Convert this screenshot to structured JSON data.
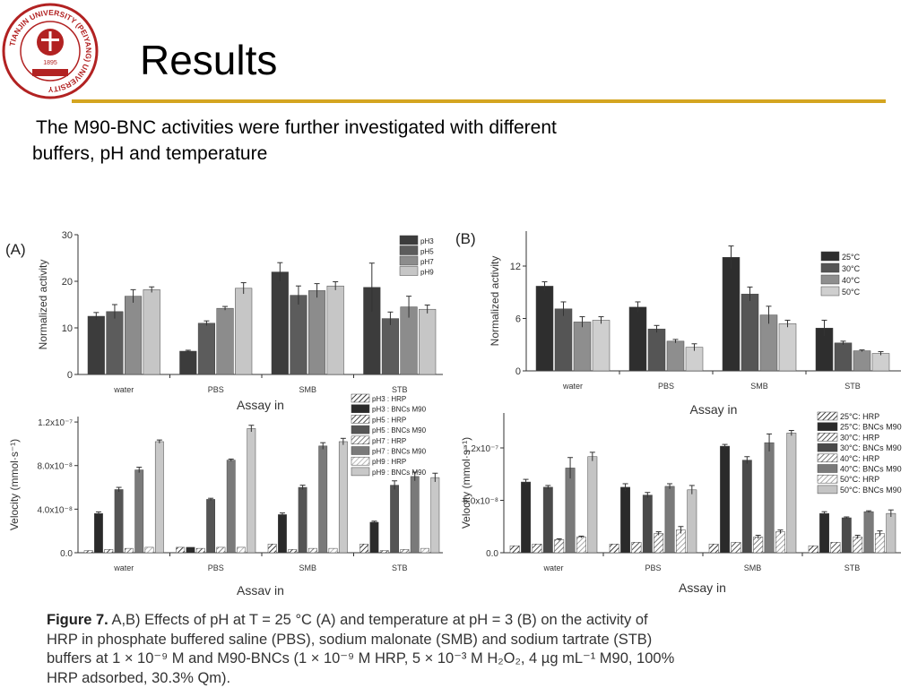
{
  "slide": {
    "title": "Results",
    "intro_line1": "The M90-BNC activities were further investigated with different",
    "intro_line2": "buffers, pH and temperature",
    "logo_ring_text": "TIANJIN UNIVERSITY (PEIYANG) UNIVERSITY",
    "logo_year": "1895",
    "accent_color": "#d4a520",
    "logo_color": "#b22222"
  },
  "caption": {
    "label": "Figure 7.",
    "line1": "A,B) Effects of pH at T = 25 °C (A) and temperature at pH = 3 (B) on the activity of",
    "line2": "HRP in phosphate buffered saline (PBS), sodium malonate (SMB) and sodium tartrate (STB)",
    "line3": "buffers at 1 × 10⁻⁹ M and M90-BNCs (1 × 10⁻⁹ M HRP, 5 × 10⁻³ M H₂O₂, 4 µg mL⁻¹ M90, 100%",
    "line4": "HRP adsorbed, 30.3% Qm)."
  },
  "chart_data": [
    {
      "panel": "(A)",
      "type": "bar",
      "categories": [
        "water",
        "PBS",
        "SMB",
        "STB"
      ],
      "xlabel": "Assay in",
      "ylabel": "Normalized activity",
      "ylim": [
        0,
        30
      ],
      "yticks": [
        "0",
        "10",
        "20",
        "30"
      ],
      "ytick_values": [
        0,
        10,
        20,
        30
      ],
      "legend_position": "top-right",
      "series": [
        {
          "name": "pH3",
          "color": "#3c3c3c",
          "hatch": false,
          "values": [
            12.5,
            5,
            22,
            18.7
          ],
          "errors": [
            0.8,
            0.2,
            2,
            5.2
          ]
        },
        {
          "name": "pH5",
          "color": "#5c5c5c",
          "hatch": false,
          "values": [
            13.5,
            11,
            17,
            12
          ],
          "errors": [
            1.5,
            0.5,
            2,
            1.4
          ]
        },
        {
          "name": "pH7",
          "color": "#8c8c8c",
          "hatch": false,
          "values": [
            16.8,
            14.2,
            18,
            14.5
          ],
          "errors": [
            1.4,
            0.4,
            1.5,
            2.3
          ]
        },
        {
          "name": "pH9",
          "color": "#c6c6c6",
          "hatch": false,
          "values": [
            18.2,
            18.5,
            19,
            14
          ],
          "errors": [
            0.6,
            1.2,
            0.9,
            0.9
          ]
        }
      ]
    },
    {
      "panel": "(B)",
      "type": "bar",
      "categories": [
        "water",
        "PBS",
        "SMB",
        "STB"
      ],
      "xlabel": "Assay in",
      "ylabel": "Normalized activity",
      "ylim": [
        0,
        16
      ],
      "yticks": [
        "0",
        "6",
        "12"
      ],
      "ytick_values": [
        0,
        6,
        12
      ],
      "legend_position": "top-right",
      "series": [
        {
          "name": "25°C",
          "color": "#2e2e2e",
          "hatch": false,
          "values": [
            9.7,
            7.3,
            13,
            4.9
          ],
          "errors": [
            0.5,
            0.6,
            1.3,
            0.9
          ]
        },
        {
          "name": "30°C",
          "color": "#555555",
          "hatch": false,
          "values": [
            7.1,
            4.8,
            8.8,
            3.2
          ],
          "errors": [
            0.8,
            0.4,
            0.8,
            0.2
          ]
        },
        {
          "name": "40°C",
          "color": "#8e8e8e",
          "hatch": false,
          "values": [
            5.6,
            3.4,
            6.4,
            2.3
          ],
          "errors": [
            0.6,
            0.2,
            1.0,
            0.1
          ]
        },
        {
          "name": "50°C",
          "color": "#cfcfcf",
          "hatch": false,
          "values": [
            5.8,
            2.7,
            5.4,
            2.0
          ],
          "errors": [
            0.4,
            0.4,
            0.4,
            0.2
          ]
        }
      ]
    },
    {
      "type": "bar",
      "categories": [
        "water",
        "PBS",
        "SMB",
        "STB"
      ],
      "xlabel": "Assav in",
      "ylabel": "Velocity (mmol·s⁻¹)",
      "ylim": [
        0,
        1.25e-07
      ],
      "yticks": [
        "0.0",
        "4.0x10⁻⁸",
        "8.0x10⁻⁸",
        "1.2x10⁻⁷"
      ],
      "ytick_values": [
        0,
        4e-08,
        8e-08,
        1.2e-07
      ],
      "legend_position": "top-right",
      "series": [
        {
          "name": "pH3 : HRP",
          "color": "#3a3a3a",
          "hatch": true,
          "values": [
            2e-09,
            5e-09,
            8e-09,
            8e-09
          ],
          "errors": [
            0,
            0,
            0,
            0
          ]
        },
        {
          "name": "pH3 : BNCs M90",
          "color": "#2a2a2a",
          "hatch": false,
          "values": [
            3.6e-08,
            5e-09,
            3.5e-08,
            2.8e-08
          ],
          "errors": [
            1.5e-09,
            0,
            1.5e-09,
            1e-09
          ]
        },
        {
          "name": "pH5 : HRP",
          "color": "#4a4a4a",
          "hatch": true,
          "values": [
            3e-09,
            4e-09,
            3e-09,
            2e-09
          ],
          "errors": [
            0,
            0,
            0,
            0
          ]
        },
        {
          "name": "pH5 : BNCs M90",
          "color": "#555555",
          "hatch": false,
          "values": [
            5.8e-08,
            4.9e-08,
            6e-08,
            6.2e-08
          ],
          "errors": [
            2e-09,
            1e-09,
            2e-09,
            4e-09
          ]
        },
        {
          "name": "pH7 : HRP",
          "color": "#808080",
          "hatch": true,
          "values": [
            4e-09,
            5e-09,
            4e-09,
            3e-09
          ],
          "errors": [
            0,
            0,
            0,
            0
          ]
        },
        {
          "name": "pH7 : BNCs M90",
          "color": "#7a7a7a",
          "hatch": false,
          "values": [
            7.6e-08,
            8.5e-08,
            9.8e-08,
            7e-08
          ],
          "errors": [
            2.5e-09,
            1e-09,
            3e-09,
            4e-09
          ]
        },
        {
          "name": "pH9 : HRP",
          "color": "#b8b8b8",
          "hatch": true,
          "values": [
            5e-09,
            5e-09,
            4e-09,
            4e-09
          ],
          "errors": [
            0,
            0,
            0,
            0
          ]
        },
        {
          "name": "pH9 : BNCs M90",
          "color": "#c8c8c8",
          "hatch": false,
          "values": [
            1.02e-07,
            1.14e-07,
            1.02e-07,
            6.9e-08
          ],
          "errors": [
            1.5e-09,
            3e-09,
            3e-09,
            4e-09
          ]
        }
      ]
    },
    {
      "type": "bar",
      "categories": [
        "water",
        "PBS",
        "SMB",
        "STB"
      ],
      "xlabel": "Assay in",
      "ylabel": "Velocity (mmol·s⁻¹)",
      "ylim": [
        0,
        1.6e-07
      ],
      "yticks": [
        "0.0",
        "6.0x10⁻⁸",
        "1.2x10⁻⁷"
      ],
      "ytick_values": [
        0,
        6e-08,
        1.2e-07
      ],
      "legend_position": "top-right",
      "series": [
        {
          "name": "25°C: HRP",
          "color": "#3a3a3a",
          "hatch": true,
          "values": [
            8e-09,
            1e-08,
            1e-08,
            8e-09
          ],
          "errors": [
            0,
            0,
            0,
            0
          ]
        },
        {
          "name": "25°C: BNCs M90",
          "color": "#2a2a2a",
          "hatch": false,
          "values": [
            8.1e-08,
            7.5e-08,
            1.22e-07,
            4.5e-08
          ],
          "errors": [
            3e-09,
            4e-09,
            2e-09,
            2e-09
          ]
        },
        {
          "name": "30°C: HRP",
          "color": "#555555",
          "hatch": true,
          "values": [
            1e-08,
            1.2e-08,
            1.2e-08,
            1.2e-08
          ],
          "errors": [
            0,
            0,
            0,
            0
          ]
        },
        {
          "name": "30°C: BNCs M90",
          "color": "#4a4a4a",
          "hatch": false,
          "values": [
            7.5e-08,
            6.6e-08,
            1.06e-07,
            4e-08
          ],
          "errors": [
            2e-09,
            3e-09,
            4e-09,
            1e-09
          ]
        },
        {
          "name": "40°C: HRP",
          "color": "#7a7a7a",
          "hatch": true,
          "values": [
            1.5e-08,
            2.2e-08,
            1.8e-08,
            1.8e-08
          ],
          "errors": [
            1e-09,
            2e-09,
            2e-09,
            2e-09
          ]
        },
        {
          "name": "40°C: BNCs M90",
          "color": "#7a7a7a",
          "hatch": false,
          "values": [
            9.7e-08,
            7.6e-08,
            1.26e-07,
            4.7e-08
          ],
          "errors": [
            1.2e-08,
            3e-09,
            1e-08,
            1e-09
          ]
        },
        {
          "name": "50°C: HRP",
          "color": "#a8a8a8",
          "hatch": true,
          "values": [
            1.8e-08,
            2.6e-08,
            2.4e-08,
            2.2e-08
          ],
          "errors": [
            1e-09,
            4e-09,
            2e-09,
            3e-09
          ]
        },
        {
          "name": "50°C: BNCs M90",
          "color": "#c4c4c4",
          "hatch": false,
          "values": [
            1.1e-07,
            7.2e-08,
            1.37e-07,
            4.5e-08
          ],
          "errors": [
            5e-09,
            5e-09,
            3e-09,
            4e-09
          ]
        }
      ]
    }
  ]
}
